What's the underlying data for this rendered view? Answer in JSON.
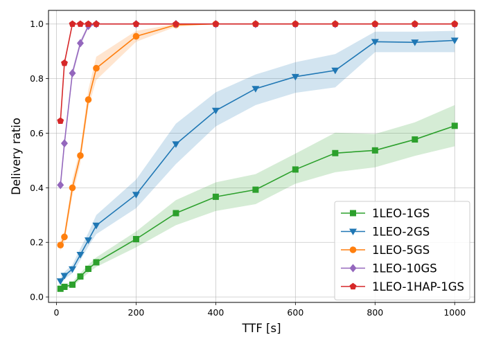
{
  "chart_data": {
    "type": "line",
    "title": "",
    "xlabel": "TTF [s]",
    "ylabel": "Delivery ratio",
    "xlim": [
      -20,
      1050
    ],
    "ylim": [
      -0.02,
      1.05
    ],
    "xticks": [
      0,
      200,
      400,
      600,
      800,
      1000
    ],
    "xtick_labels": [
      "0",
      "200",
      "400",
      "600",
      "800",
      "1000"
    ],
    "yticks": [
      0.0,
      0.2,
      0.4,
      0.6,
      0.8,
      1.0
    ],
    "ytick_labels": [
      "0.0",
      "0.2",
      "0.4",
      "0.6",
      "0.8",
      "1.0"
    ],
    "grid": true,
    "legend_position": "lower-right",
    "series": [
      {
        "name": "1LEO-1GS",
        "color": "#2ca02c",
        "marker": "square",
        "x": [
          10,
          20,
          40,
          60,
          80,
          100,
          200,
          300,
          400,
          500,
          600,
          700,
          800,
          900,
          1000
        ],
        "y": [
          0.03,
          0.037,
          0.045,
          0.075,
          0.103,
          0.127,
          0.212,
          0.307,
          0.367,
          0.393,
          0.467,
          0.527,
          0.537,
          0.577,
          0.627
        ],
        "lower": [
          0.025,
          0.03,
          0.037,
          0.063,
          0.088,
          0.11,
          0.182,
          0.263,
          0.315,
          0.34,
          0.415,
          0.457,
          0.475,
          0.517,
          0.552
        ],
        "upper": [
          0.038,
          0.045,
          0.055,
          0.088,
          0.118,
          0.145,
          0.24,
          0.355,
          0.42,
          0.45,
          0.525,
          0.602,
          0.597,
          0.64,
          0.703
        ]
      },
      {
        "name": "1LEO-2GS",
        "color": "#1f77b4",
        "marker": "triangle-down",
        "x": [
          10,
          20,
          40,
          60,
          80,
          100,
          200,
          300,
          400,
          500,
          600,
          700,
          800,
          900,
          1000
        ],
        "y": [
          0.058,
          0.078,
          0.102,
          0.155,
          0.208,
          0.262,
          0.375,
          0.56,
          0.683,
          0.763,
          0.807,
          0.83,
          0.935,
          0.933,
          0.94
        ],
        "lower": [
          0.048,
          0.065,
          0.087,
          0.135,
          0.185,
          0.23,
          0.325,
          0.487,
          0.625,
          0.703,
          0.748,
          0.768,
          0.897,
          0.897,
          0.897
        ],
        "upper": [
          0.07,
          0.092,
          0.118,
          0.178,
          0.235,
          0.3,
          0.43,
          0.635,
          0.75,
          0.815,
          0.86,
          0.89,
          0.972,
          0.972,
          0.975
        ]
      },
      {
        "name": "1LEO-5GS",
        "color": "#ff7f0e",
        "marker": "circle",
        "x": [
          10,
          20,
          40,
          60,
          80,
          100,
          200,
          300,
          400,
          500,
          600,
          700,
          800,
          900,
          1000
        ],
        "y": [
          0.19,
          0.22,
          0.4,
          0.518,
          0.723,
          0.838,
          0.955,
          0.997,
          1.0,
          1.0,
          1.0,
          1.0,
          1.0,
          1.0,
          1.0
        ],
        "lower": [
          0.17,
          0.2,
          0.37,
          0.49,
          0.695,
          0.795,
          0.935,
          0.99,
          1.0,
          1.0,
          1.0,
          1.0,
          1.0,
          1.0,
          1.0
        ],
        "upper": [
          0.21,
          0.24,
          0.43,
          0.545,
          0.76,
          0.88,
          0.975,
          1.0,
          1.0,
          1.0,
          1.0,
          1.0,
          1.0,
          1.0,
          1.0
        ]
      },
      {
        "name": "1LEO-10GS",
        "color": "#9467bd",
        "marker": "diamond",
        "x": [
          10,
          20,
          40,
          60,
          80,
          100,
          200,
          300,
          400,
          500,
          600,
          700,
          800,
          900,
          1000
        ],
        "y": [
          0.41,
          0.563,
          0.82,
          0.93,
          0.993,
          1.0,
          1.0,
          1.0,
          1.0,
          1.0,
          1.0,
          1.0,
          1.0,
          1.0,
          1.0
        ],
        "lower": [
          0.395,
          0.545,
          0.805,
          0.918,
          0.985,
          1.0,
          1.0,
          1.0,
          1.0,
          1.0,
          1.0,
          1.0,
          1.0,
          1.0,
          1.0
        ],
        "upper": [
          0.425,
          0.58,
          0.835,
          0.942,
          1.0,
          1.0,
          1.0,
          1.0,
          1.0,
          1.0,
          1.0,
          1.0,
          1.0,
          1.0,
          1.0
        ]
      },
      {
        "name": "1LEO-1HAP-1GS",
        "color": "#d62728",
        "marker": "pentagon",
        "x": [
          10,
          20,
          40,
          60,
          80,
          100,
          200,
          300,
          400,
          500,
          600,
          700,
          800,
          900,
          1000
        ],
        "y": [
          0.645,
          0.857,
          1.0,
          1.0,
          1.0,
          1.0,
          1.0,
          1.0,
          1.0,
          1.0,
          1.0,
          1.0,
          1.0,
          1.0,
          1.0
        ],
        "lower": [
          0.63,
          0.845,
          1.0,
          1.0,
          1.0,
          1.0,
          1.0,
          1.0,
          1.0,
          1.0,
          1.0,
          1.0,
          1.0,
          1.0,
          1.0
        ],
        "upper": [
          0.66,
          0.87,
          1.0,
          1.0,
          1.0,
          1.0,
          1.0,
          1.0,
          1.0,
          1.0,
          1.0,
          1.0,
          1.0,
          1.0,
          1.0
        ]
      }
    ]
  }
}
